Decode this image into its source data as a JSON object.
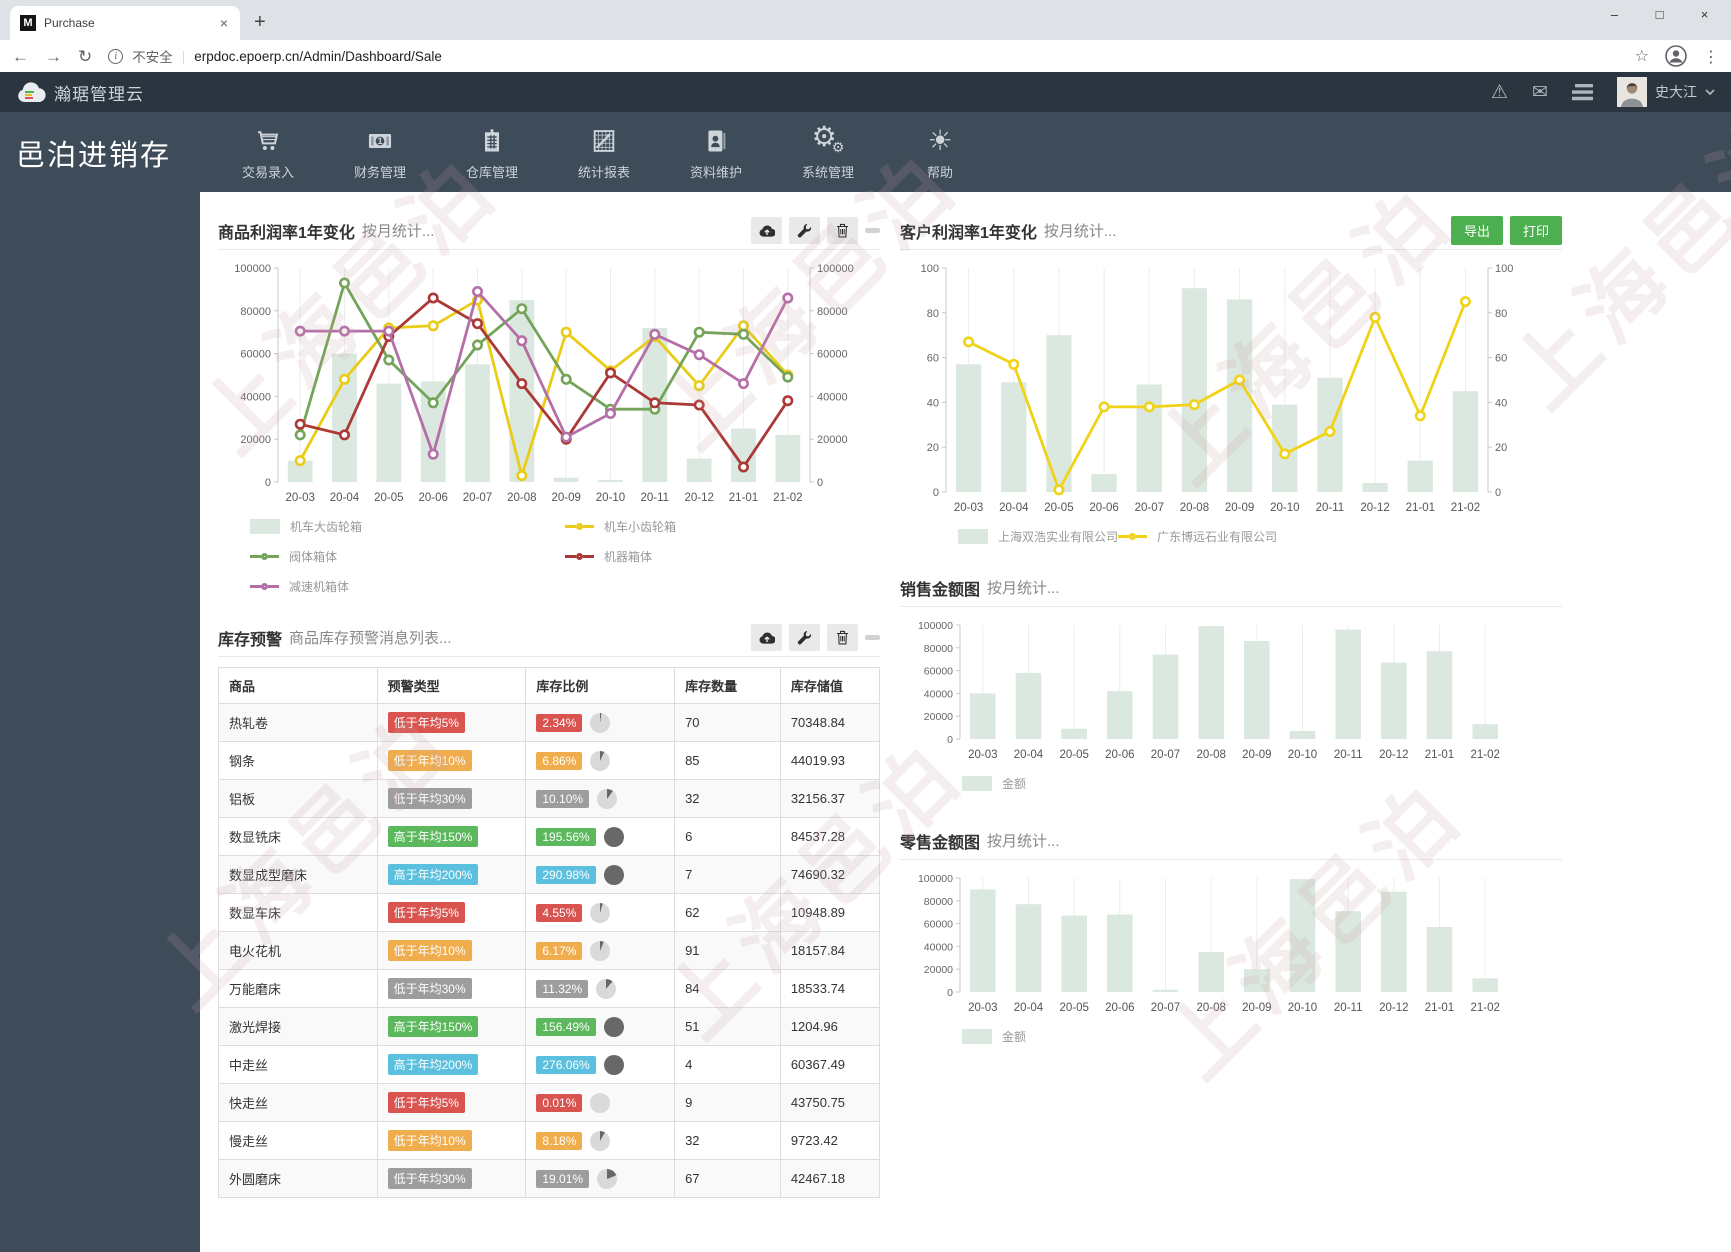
{
  "browser": {
    "tab_title": "Purchase",
    "favicon_letter": "M",
    "url": "erpdoc.epoerp.cn/Admin/Dashboard/Sale",
    "security_label": "不安全"
  },
  "topbar": {
    "brand": "瀚琚管理云",
    "username": "史大江"
  },
  "app": {
    "title": "邑泊进销存"
  },
  "menu": {
    "items": [
      {
        "label": "交易录入",
        "icon": "cart-icon"
      },
      {
        "label": "财务管理",
        "icon": "money-icon"
      },
      {
        "label": "仓库管理",
        "icon": "warehouse-icon"
      },
      {
        "label": "统计报表",
        "icon": "report-chart-icon"
      },
      {
        "label": "资料维护",
        "icon": "id-card-icon"
      },
      {
        "label": "系统管理",
        "icon": "gears-icon"
      },
      {
        "label": "帮助",
        "icon": "sun-icon"
      }
    ]
  },
  "panels": {
    "product_profit": {
      "title": "商品利润率1年变化",
      "subtitle": "按月统计..."
    },
    "customer_profit": {
      "title": "客户利润率1年变化",
      "subtitle": "按月统计...",
      "export_label": "导出",
      "print_label": "打印"
    },
    "inventory": {
      "title": "库存预警",
      "subtitle": "商品库存预警消息列表...",
      "columns": [
        "商品",
        "预警类型",
        "库存比例",
        "库存数量",
        "库存储值"
      ],
      "rows": [
        {
          "product": "热轧卷",
          "alert": "低于年均5%",
          "level": "red",
          "ratio": "2.34%",
          "pct": 2.34,
          "qty": "70",
          "value": "70348.84"
        },
        {
          "product": "钢条",
          "alert": "低于年均10%",
          "level": "orange",
          "ratio": "6.86%",
          "pct": 6.86,
          "qty": "85",
          "value": "44019.93"
        },
        {
          "product": "铝板",
          "alert": "低于年均30%",
          "level": "gray",
          "ratio": "10.10%",
          "pct": 10.1,
          "qty": "32",
          "value": "32156.37"
        },
        {
          "product": "数显铣床",
          "alert": "高于年均150%",
          "level": "green",
          "ratio": "195.56%",
          "pct": 195.56,
          "qty": "6",
          "value": "84537.28"
        },
        {
          "product": "数显成型磨床",
          "alert": "高于年均200%",
          "level": "blue",
          "ratio": "290.98%",
          "pct": 290.98,
          "qty": "7",
          "value": "74690.32"
        },
        {
          "product": "数显车床",
          "alert": "低于年均5%",
          "level": "red",
          "ratio": "4.55%",
          "pct": 4.55,
          "qty": "62",
          "value": "10948.89"
        },
        {
          "product": "电火花机",
          "alert": "低于年均10%",
          "level": "orange",
          "ratio": "6.17%",
          "pct": 6.17,
          "qty": "91",
          "value": "18157.84"
        },
        {
          "product": "万能磨床",
          "alert": "低于年均30%",
          "level": "gray",
          "ratio": "11.32%",
          "pct": 11.32,
          "qty": "84",
          "value": "18533.74"
        },
        {
          "product": "激光焊接",
          "alert": "高于年均150%",
          "level": "green",
          "ratio": "156.49%",
          "pct": 156.49,
          "qty": "51",
          "value": "1204.96"
        },
        {
          "product": "中走丝",
          "alert": "高于年均200%",
          "level": "blue",
          "ratio": "276.06%",
          "pct": 276.06,
          "qty": "4",
          "value": "60367.49"
        },
        {
          "product": "快走丝",
          "alert": "低于年均5%",
          "level": "red",
          "ratio": "0.01%",
          "pct": 0.01,
          "qty": "9",
          "value": "43750.75"
        },
        {
          "product": "慢走丝",
          "alert": "低于年均10%",
          "level": "orange",
          "ratio": "8.18%",
          "pct": 8.18,
          "qty": "32",
          "value": "9723.42"
        },
        {
          "product": "外圆磨床",
          "alert": "低于年均30%",
          "level": "gray",
          "ratio": "19.01%",
          "pct": 19.01,
          "qty": "67",
          "value": "42467.18"
        }
      ]
    },
    "sales_amount": {
      "title": "销售金额图",
      "subtitle": "按月统计..."
    },
    "retail_amount": {
      "title": "零售金额图",
      "subtitle": "按月统计..."
    }
  },
  "watermark": {
    "text": "上海邑泊"
  },
  "colors": {
    "badge_red": "#d9534f",
    "badge_orange": "#f0ad4e",
    "badge_gray": "#9d9d9d",
    "badge_green": "#5cb85c",
    "badge_blue": "#5bc0de",
    "bar_fill": "#dbe8e0",
    "line_yellow": "#e9cc17",
    "line_green": "#74a45a",
    "line_red": "#ab3a37",
    "line_purple": "#b56fa8",
    "button_green": "#4caf50",
    "pie_dark": "#686868",
    "pie_light": "#d9d9d9"
  },
  "chart_data": [
    {
      "type": "bar+line",
      "title": "商品利润率1年变化 按月统计",
      "categories": [
        "20-03",
        "20-04",
        "20-05",
        "20-06",
        "20-07",
        "20-08",
        "20-09",
        "20-10",
        "20-11",
        "20-12",
        "21-01",
        "21-02"
      ],
      "ylim": [
        0,
        100000
      ],
      "ytick": 20000,
      "dual_axis": true,
      "grid": "vertical",
      "legend_position": "bottom",
      "series": [
        {
          "name": "机车大齿轮箱",
          "type": "bar",
          "color": "#dbe8e0",
          "values": [
            10000,
            60000,
            46000,
            47000,
            55000,
            85000,
            2000,
            1000,
            72000,
            11000,
            25000,
            22000
          ]
        },
        {
          "name": "机车小齿轮箱",
          "type": "line",
          "color": "#e9cc17",
          "values": [
            10000,
            48000,
            72000,
            73000,
            85000,
            3000,
            70000,
            52000,
            68000,
            45000,
            73000,
            50000
          ]
        },
        {
          "name": "阀体箱体",
          "type": "line",
          "color": "#74a45a",
          "values": [
            22000,
            93000,
            57000,
            37000,
            64000,
            81000,
            48000,
            34000,
            34000,
            70000,
            69000,
            49000
          ]
        },
        {
          "name": "机器箱体",
          "type": "line",
          "color": "#ab3a37",
          "values": [
            27000,
            22000,
            68000,
            86000,
            74000,
            46000,
            20000,
            51000,
            37000,
            36000,
            7000,
            38000
          ]
        },
        {
          "name": "减速机箱体",
          "type": "line",
          "color": "#b56fa8",
          "values": [
            70500,
            70500,
            70500,
            13000,
            89000,
            66000,
            21000,
            32000,
            69000,
            59500,
            46000,
            86000
          ]
        }
      ]
    },
    {
      "type": "bar+line",
      "title": "客户利润率1年变化 按月统计",
      "categories": [
        "20-03",
        "20-04",
        "20-05",
        "20-06",
        "20-07",
        "20-08",
        "20-09",
        "20-10",
        "20-11",
        "20-12",
        "21-01",
        "21-02"
      ],
      "ylim": [
        0,
        100
      ],
      "ytick": 20,
      "dual_axis": true,
      "grid": "vertical",
      "legend_position": "bottom",
      "series": [
        {
          "name": "上海双浩实业有限公司",
          "type": "bar",
          "color": "#dbe8e0",
          "values": [
            57,
            49,
            70,
            8,
            48,
            91,
            86,
            39,
            51,
            4,
            14,
            45
          ]
        },
        {
          "name": "广东博远石业有限公司",
          "type": "line",
          "color": "#f0d317",
          "values": [
            67,
            57,
            1,
            38,
            38,
            39,
            50,
            17,
            27,
            78,
            34,
            85
          ]
        }
      ]
    },
    {
      "type": "bar",
      "title": "销售金额图 按月统计",
      "categories": [
        "20-03",
        "20-04",
        "20-05",
        "20-06",
        "20-07",
        "20-08",
        "20-09",
        "20-10",
        "20-11",
        "20-12",
        "21-01",
        "21-02"
      ],
      "ylim": [
        0,
        100000
      ],
      "ytick": 20000,
      "dual_axis": false,
      "grid": "vertical",
      "legend_position": "bottom",
      "series": [
        {
          "name": "金额",
          "type": "bar",
          "color": "#dbe8e0",
          "values": [
            40000,
            58000,
            9000,
            42000,
            74000,
            99000,
            86000,
            7000,
            96000,
            67000,
            77000,
            13000
          ]
        }
      ]
    },
    {
      "type": "bar",
      "title": "零售金额图 按月统计",
      "categories": [
        "20-03",
        "20-04",
        "20-05",
        "20-06",
        "20-07",
        "20-08",
        "20-09",
        "20-10",
        "20-11",
        "20-12",
        "21-01",
        "21-02"
      ],
      "ylim": [
        0,
        100000
      ],
      "ytick": 20000,
      "dual_axis": false,
      "grid": "vertical",
      "legend_position": "bottom",
      "series": [
        {
          "name": "金额",
          "type": "bar",
          "color": "#dbe8e0",
          "values": [
            90000,
            77000,
            67000,
            68000,
            2000,
            35000,
            20000,
            99000,
            71000,
            88000,
            57000,
            12000
          ]
        }
      ]
    }
  ]
}
